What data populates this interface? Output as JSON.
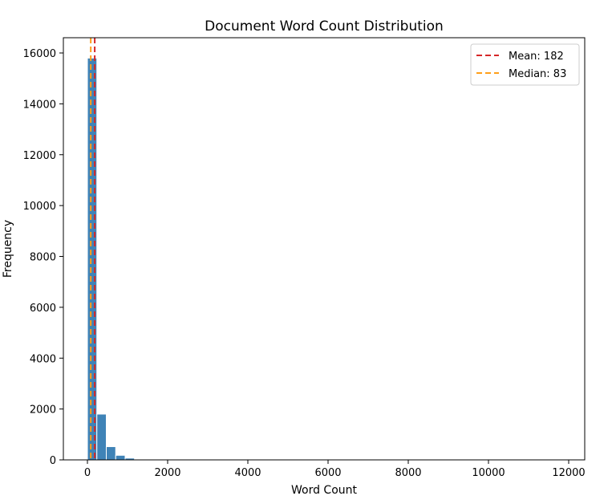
{
  "chart_data": {
    "type": "bar",
    "title": "Document Word Count Distribution",
    "xlabel": "Word Count",
    "ylabel": "Frequency",
    "xlim": [
      -600,
      12400
    ],
    "ylim": [
      0,
      16600
    ],
    "xticks": [
      0,
      2000,
      4000,
      6000,
      8000,
      10000,
      12000
    ],
    "yticks": [
      0,
      2000,
      4000,
      6000,
      8000,
      10000,
      12000,
      14000,
      16000
    ],
    "bar_color": "#3f83b7",
    "bin_width": 235,
    "bins": [
      {
        "x0": 0,
        "x1": 235,
        "value": 15800
      },
      {
        "x0": 235,
        "x1": 470,
        "value": 1800
      },
      {
        "x0": 470,
        "x1": 705,
        "value": 520
      },
      {
        "x0": 705,
        "x1": 940,
        "value": 180
      },
      {
        "x0": 940,
        "x1": 1175,
        "value": 70
      },
      {
        "x0": 1175,
        "x1": 1410,
        "value": 30
      },
      {
        "x0": 1410,
        "x1": 1645,
        "value": 10
      }
    ],
    "reference_lines": [
      {
        "label": "Mean: 182",
        "value": 182,
        "color": "#d62728"
      },
      {
        "label": "Median: 83",
        "value": 83,
        "color": "#ff9f1a"
      }
    ],
    "legend_position": "top-right",
    "grid": false
  }
}
